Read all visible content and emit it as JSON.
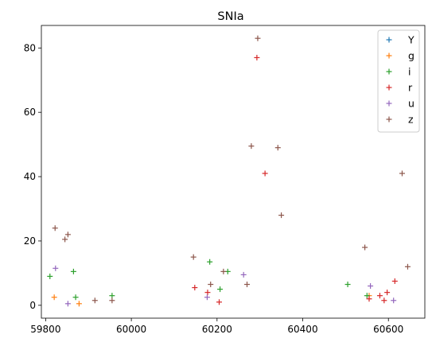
{
  "chart_data": {
    "type": "scatter",
    "title": "SNIa",
    "xlabel": "",
    "ylabel": "",
    "xlim": [
      59790,
      60685
    ],
    "ylim": [
      -4,
      87
    ],
    "xticks": [
      59800,
      60000,
      60200,
      60400,
      60600
    ],
    "yticks": [
      0,
      20,
      40,
      60,
      80
    ],
    "grid": false,
    "legend_position": "top-right",
    "marker": "+",
    "series": [
      {
        "name": "Y",
        "color": "#1f77b4",
        "points": []
      },
      {
        "name": "g",
        "color": "#ff7f0e",
        "points": [
          [
            59820,
            2.5
          ],
          [
            59878,
            0.5
          ],
          [
            60555,
            3.0
          ]
        ]
      },
      {
        "name": "i",
        "color": "#2ca02c",
        "points": [
          [
            59810,
            9.0
          ],
          [
            59865,
            10.5
          ],
          [
            59870,
            2.5
          ],
          [
            59955,
            3.0
          ],
          [
            60183,
            13.5
          ],
          [
            60207,
            5.0
          ],
          [
            60225,
            10.5
          ],
          [
            60505,
            6.5
          ],
          [
            60550,
            3.0
          ]
        ]
      },
      {
        "name": "r",
        "color": "#d62728",
        "points": [
          [
            60148,
            5.5
          ],
          [
            60178,
            4.0
          ],
          [
            60205,
            1.0
          ],
          [
            60293,
            77.0
          ],
          [
            60312,
            41.0
          ],
          [
            60555,
            2.0
          ],
          [
            60580,
            3.0
          ],
          [
            60590,
            1.5
          ],
          [
            60597,
            4.0
          ],
          [
            60615,
            7.5
          ]
        ]
      },
      {
        "name": "u",
        "color": "#9467bd",
        "points": [
          [
            59823,
            11.5
          ],
          [
            59852,
            0.5
          ],
          [
            60177,
            2.5
          ],
          [
            60262,
            9.5
          ],
          [
            60558,
            6.0
          ],
          [
            60612,
            1.5
          ]
        ]
      },
      {
        "name": "z",
        "color": "#8c564b",
        "points": [
          [
            59822,
            24.0
          ],
          [
            59845,
            20.5
          ],
          [
            59852,
            22.0
          ],
          [
            59915,
            1.5
          ],
          [
            59955,
            1.5
          ],
          [
            60145,
            15.0
          ],
          [
            60185,
            6.5
          ],
          [
            60215,
            10.5
          ],
          [
            60270,
            6.5
          ],
          [
            60280,
            49.5
          ],
          [
            60295,
            83.0
          ],
          [
            60342,
            49.0
          ],
          [
            60350,
            28.0
          ],
          [
            60545,
            18.0
          ],
          [
            60632,
            41.0
          ],
          [
            60645,
            12.0
          ]
        ]
      }
    ]
  }
}
